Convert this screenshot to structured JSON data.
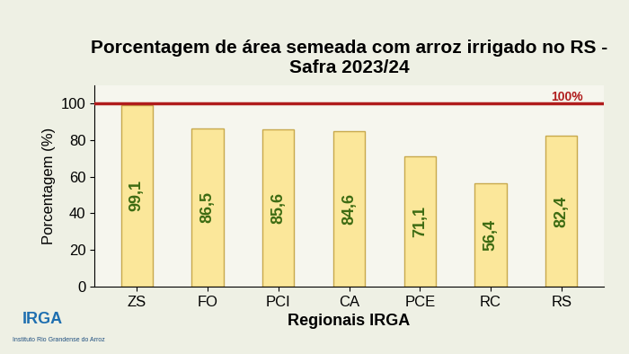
{
  "chart_data": {
    "type": "bar",
    "title": "Porcentagem de área semeada com arroz irrigado no RS - Safra 2023/24",
    "x_label": "Regionais IRGA",
    "y_label": "Porcentagem (%)",
    "categories": [
      "ZS",
      "FO",
      "PCI",
      "CA",
      "PCE",
      "RC",
      "RS"
    ],
    "values": [
      99.1,
      86.5,
      85.6,
      84.6,
      71.1,
      56.4,
      82.4
    ],
    "value_labels": [
      "99,1",
      "86,5",
      "85,6",
      "84,6",
      "71,1",
      "56,4",
      "82,4"
    ],
    "data_labels": true,
    "color": "#fbe79a",
    "ylim": [
      0,
      110
    ],
    "yticks": [
      0,
      20,
      40,
      60,
      80,
      100
    ],
    "grid": false,
    "target": {
      "value": 100,
      "label": "100%",
      "color": "#b01c1c"
    },
    "annotations": [
      "IRGA",
      "Instituto Rio Grandense do Arroz"
    ]
  }
}
